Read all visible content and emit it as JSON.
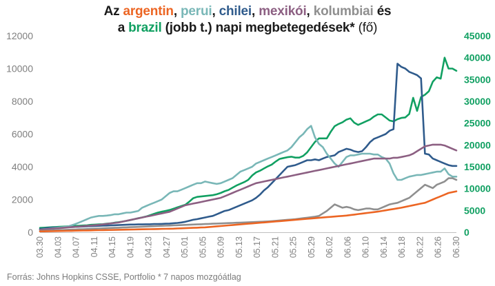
{
  "title": {
    "line1": [
      {
        "text": "Az ",
        "color": "#1a1a1a"
      },
      {
        "text": "argentin",
        "color": "#ec6523"
      },
      {
        "text": ", ",
        "color": "#1a1a1a"
      },
      {
        "text": "perui",
        "color": "#79b7b7"
      },
      {
        "text": ", ",
        "color": "#1a1a1a"
      },
      {
        "text": "chilei",
        "color": "#2f5b8c"
      },
      {
        "text": ", ",
        "color": "#1a1a1a"
      },
      {
        "text": "mexikói",
        "color": "#8c5f82"
      },
      {
        "text": ", ",
        "color": "#1a1a1a"
      },
      {
        "text": "kolumbiai",
        "color": "#8f8f8f"
      },
      {
        "text": " és",
        "color": "#1a1a1a"
      }
    ],
    "line2": [
      {
        "text": "a ",
        "color": "#1a1a1a"
      },
      {
        "text": "brazil",
        "color": "#11a062"
      },
      {
        "text": " (jobb t.) napi megbetegedések* ",
        "color": "#1a1a1a"
      },
      {
        "text": "(fő)",
        "color": "#1a1a1a",
        "light": true
      }
    ]
  },
  "source": "Forrás: Johns Hopkins CSSE, Portfolio   * 7 napos mozgóátlag",
  "chart_data": {
    "type": "line",
    "x_tick_labels": [
      "03.30",
      "04.03",
      "04.07",
      "04.11",
      "04.15",
      "04.19",
      "04.23",
      "04.27",
      "05.01",
      "05.05",
      "05.09",
      "05.13",
      "05.17",
      "05.21",
      "05.25",
      "05.29",
      "06.02",
      "06.06",
      "06.10",
      "06.14",
      "06.18",
      "06.22",
      "06.26",
      "06.30"
    ],
    "y_left": {
      "min": 0,
      "max": 12000,
      "step": 2000,
      "ticks": [
        "0",
        "2000",
        "4000",
        "6000",
        "8000",
        "10000",
        "12000"
      ]
    },
    "y_right": {
      "min": 0,
      "max": 45000,
      "step": 5000,
      "ticks": [
        "0",
        "5000",
        "10000",
        "15000",
        "20000",
        "25000",
        "30000",
        "35000",
        "40000",
        "45000"
      ]
    },
    "series": [
      {
        "color": "#11a062",
        "axis": "right",
        "values": [
          1000,
          1050,
          1100,
          1150,
          1200,
          1250,
          1300,
          1350,
          1400,
          1450,
          1500,
          1550,
          1600,
          1700,
          1750,
          1800,
          1850,
          1950,
          2050,
          2200,
          2300,
          2450,
          2600,
          2800,
          3000,
          3200,
          3400,
          3600,
          3900,
          4200,
          4500,
          4700,
          4900,
          5100,
          5400,
          5700,
          6000,
          6300,
          7000,
          7800,
          8100,
          8200,
          8300,
          8400,
          8500,
          8700,
          9000,
          9400,
          9700,
          10200,
          10700,
          11100,
          11500,
          12000,
          13000,
          13700,
          14100,
          14600,
          15100,
          15500,
          16200,
          16800,
          17000,
          17200,
          17300,
          17100,
          17100,
          17500,
          18300,
          19500,
          20700,
          21500,
          21500,
          21500,
          23000,
          24300,
          24800,
          25200,
          25800,
          26100,
          25100,
          24600,
          25000,
          25400,
          25800,
          26500,
          27000,
          27000,
          26300,
          25600,
          25400,
          25900,
          26200,
          26300,
          27100,
          30800,
          27800,
          31000,
          31500,
          32300,
          34500,
          35500,
          35200,
          40000,
          37500,
          37500,
          37000
        ]
      },
      {
        "color": "#2f5b8c",
        "axis": "left",
        "values": [
          200,
          230,
          260,
          280,
          290,
          300,
          300,
          310,
          320,
          330,
          340,
          350,
          360,
          370,
          380,
          390,
          400,
          410,
          420,
          430,
          440,
          450,
          460,
          470,
          470,
          480,
          480,
          490,
          490,
          500,
          500,
          510,
          520,
          530,
          550,
          570,
          600,
          640,
          700,
          760,
          800,
          850,
          900,
          950,
          1000,
          1100,
          1200,
          1300,
          1350,
          1450,
          1550,
          1650,
          1750,
          1850,
          1950,
          2100,
          2300,
          2550,
          2750,
          3000,
          3250,
          3500,
          3750,
          4000,
          4050,
          4100,
          4200,
          4300,
          4400,
          4400,
          4450,
          4400,
          4500,
          4600,
          4650,
          4700,
          4900,
          5000,
          5100,
          5050,
          4950,
          4900,
          4950,
          5200,
          5500,
          5700,
          5800,
          5900,
          6000,
          6200,
          6300,
          10300,
          10100,
          10000,
          9800,
          9700,
          9600,
          9400,
          4800,
          4750,
          4500,
          4400,
          4300,
          4200,
          4100,
          4050,
          4050
        ]
      },
      {
        "color": "#79b7b7",
        "axis": "left",
        "values": [
          150,
          180,
          200,
          230,
          260,
          290,
          320,
          350,
          420,
          500,
          600,
          700,
          800,
          900,
          950,
          1000,
          1000,
          1020,
          1050,
          1100,
          1100,
          1150,
          1200,
          1200,
          1250,
          1300,
          1500,
          1600,
          1700,
          1800,
          1900,
          2000,
          2200,
          2400,
          2500,
          2500,
          2600,
          2700,
          2800,
          2900,
          3000,
          3000,
          3100,
          3050,
          3000,
          2950,
          3000,
          3100,
          3200,
          3300,
          3500,
          3700,
          3800,
          3900,
          4000,
          4200,
          4300,
          4400,
          4500,
          4600,
          4700,
          4800,
          4900,
          5000,
          5200,
          5500,
          5800,
          6000,
          6300,
          6500,
          5800,
          5400,
          5200,
          4800,
          4500,
          4200,
          4000,
          4300,
          4600,
          4700,
          4700,
          4750,
          4800,
          4800,
          4800,
          4750,
          4750,
          4600,
          4500,
          4200,
          3600,
          3200,
          3200,
          3300,
          3400,
          3450,
          3500,
          3500,
          3550,
          3600,
          3650,
          3700,
          3700,
          3900,
          3550,
          3400,
          3400
        ]
      },
      {
        "color": "#8c5f82",
        "axis": "left",
        "values": [
          150,
          170,
          190,
          210,
          230,
          250,
          270,
          290,
          310,
          330,
          350,
          370,
          390,
          410,
          430,
          450,
          480,
          510,
          540,
          570,
          600,
          650,
          700,
          750,
          800,
          850,
          900,
          950,
          1000,
          1050,
          1100,
          1150,
          1200,
          1250,
          1350,
          1450,
          1550,
          1650,
          1700,
          1750,
          1800,
          1850,
          1900,
          1950,
          2000,
          2050,
          2100,
          2200,
          2300,
          2400,
          2500,
          2600,
          2700,
          2800,
          2900,
          3000,
          3050,
          3100,
          3150,
          3200,
          3250,
          3300,
          3350,
          3400,
          3450,
          3500,
          3550,
          3600,
          3650,
          3700,
          3750,
          3800,
          3850,
          3900,
          3950,
          4000,
          4050,
          4100,
          4150,
          4200,
          4250,
          4300,
          4350,
          4400,
          4450,
          4500,
          4500,
          4500,
          4500,
          4500,
          4550,
          4550,
          4600,
          4650,
          4700,
          4800,
          4950,
          5100,
          5250,
          5300,
          5350,
          5350,
          5350,
          5300,
          5200,
          5100,
          5000
        ]
      },
      {
        "color": "#8f8f8f",
        "axis": "left",
        "values": [
          80,
          90,
          100,
          110,
          120,
          130,
          140,
          150,
          160,
          170,
          180,
          190,
          200,
          210,
          220,
          230,
          240,
          250,
          260,
          270,
          280,
          290,
          300,
          310,
          320,
          330,
          340,
          350,
          360,
          370,
          380,
          390,
          400,
          410,
          420,
          430,
          440,
          450,
          460,
          470,
          480,
          490,
          500,
          510,
          520,
          530,
          540,
          550,
          560,
          570,
          580,
          590,
          600,
          610,
          620,
          630,
          640,
          650,
          660,
          680,
          700,
          720,
          740,
          760,
          780,
          800,
          830,
          860,
          890,
          920,
          950,
          1000,
          1150,
          1300,
          1500,
          1700,
          1600,
          1500,
          1550,
          1500,
          1400,
          1350,
          1400,
          1450,
          1450,
          1400,
          1400,
          1500,
          1600,
          1700,
          1750,
          1800,
          1900,
          2000,
          2100,
          2300,
          2500,
          2700,
          2900,
          2800,
          2700,
          2900,
          3000,
          3100,
          3300,
          3300,
          3200
        ]
      },
      {
        "color": "#ec6523",
        "axis": "left",
        "values": [
          50,
          55,
          60,
          65,
          70,
          75,
          80,
          85,
          90,
          95,
          100,
          105,
          110,
          115,
          120,
          125,
          130,
          135,
          140,
          145,
          150,
          155,
          160,
          165,
          170,
          175,
          180,
          185,
          190,
          195,
          200,
          205,
          210,
          215,
          220,
          230,
          240,
          250,
          260,
          270,
          280,
          290,
          300,
          320,
          340,
          360,
          380,
          400,
          420,
          440,
          460,
          480,
          500,
          520,
          540,
          560,
          580,
          600,
          620,
          640,
          660,
          680,
          700,
          720,
          740,
          760,
          780,
          800,
          820,
          840,
          860,
          880,
          900,
          920,
          940,
          960,
          980,
          1000,
          1020,
          1050,
          1080,
          1110,
          1140,
          1170,
          1200,
          1230,
          1260,
          1300,
          1340,
          1380,
          1420,
          1460,
          1500,
          1550,
          1600,
          1650,
          1700,
          1750,
          1800,
          1900,
          2000,
          2100,
          2200,
          2300,
          2400,
          2450,
          2500
        ]
      }
    ]
  }
}
